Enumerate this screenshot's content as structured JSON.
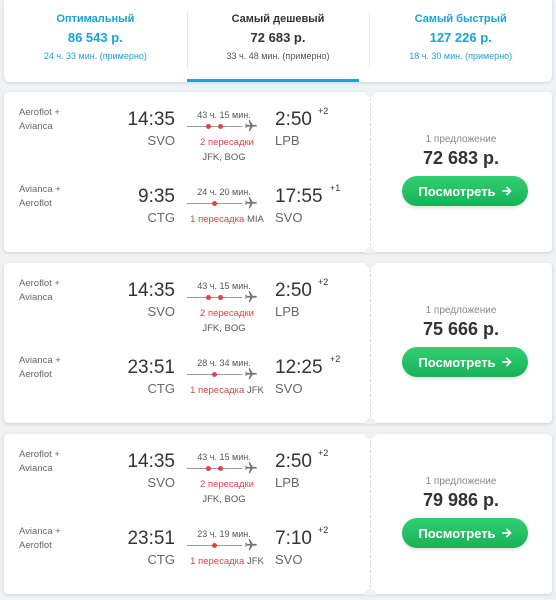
{
  "tabs": [
    {
      "title": "Оптимальный",
      "price": "86 543 р.",
      "duration": "24 ч. 33 мин. (примерно)",
      "active": false
    },
    {
      "title": "Самый дешевый",
      "price": "72 683 р.",
      "duration": "33 ч. 48 мин. (примерно)",
      "active": true
    },
    {
      "title": "Самый быстрый",
      "price": "127 226 р.",
      "duration": "18 ч. 30 мин. (примерно)",
      "active": false
    }
  ],
  "tickets": [
    {
      "offers": "1 предложение",
      "price": "72 683 р.",
      "button": "Посмотреть",
      "outbound": {
        "airline_1": "Aeroflot +",
        "airline_2": "Avianca",
        "dep_time": "14:35",
        "dep_code": "SVO",
        "arr_time": "2:50",
        "arr_offset": "+2",
        "arr_code": "LPB",
        "duration": "43 ч. 15 мин.",
        "stops": "2 пересадки",
        "via": "JFK, BOG"
      },
      "return": {
        "airline_1": "Avianca +",
        "airline_2": "Aeroflot",
        "dep_time": "9:35",
        "dep_code": "CTG",
        "arr_time": "17:55",
        "arr_offset": "+1",
        "arr_code": "SVO",
        "duration": "24 ч. 20 мин.",
        "stops": "1 пересадка",
        "via": "MIA"
      }
    },
    {
      "offers": "1 предложение",
      "price": "75 666 р.",
      "button": "Посмотреть",
      "outbound": {
        "airline_1": "Aeroflot +",
        "airline_2": "Avianca",
        "dep_time": "14:35",
        "dep_code": "SVO",
        "arr_time": "2:50",
        "arr_offset": "+2",
        "arr_code": "LPB",
        "duration": "43 ч. 15 мин.",
        "stops": "2 пересадки",
        "via": "JFK, BOG"
      },
      "return": {
        "airline_1": "Avianca +",
        "airline_2": "Aeroflot",
        "dep_time": "23:51",
        "dep_code": "CTG",
        "arr_time": "12:25",
        "arr_offset": "+2",
        "arr_code": "SVO",
        "duration": "28 ч. 34 мин.",
        "stops": "1 пересадка",
        "via": "JFK"
      }
    },
    {
      "offers": "1 предложение",
      "price": "79 986 р.",
      "button": "Посмотреть",
      "outbound": {
        "airline_1": "Aeroflot +",
        "airline_2": "Avianca",
        "dep_time": "14:35",
        "dep_code": "SVO",
        "arr_time": "2:50",
        "arr_offset": "+2",
        "arr_code": "LPB",
        "duration": "43 ч. 15 мин.",
        "stops": "2 пересадки",
        "via": "JFK, BOG"
      },
      "return": {
        "airline_1": "Avianca +",
        "airline_2": "Aeroflot",
        "dep_time": "23:51",
        "dep_code": "CTG",
        "arr_time": "7:10",
        "arr_offset": "+2",
        "arr_code": "SVO",
        "duration": "23 ч. 19 мин.",
        "stops": "1 пересадка",
        "via": "JFK"
      }
    }
  ],
  "colors": {
    "accent": "#1aa3d4",
    "stops": "#e0434b",
    "button": "#19b157"
  }
}
